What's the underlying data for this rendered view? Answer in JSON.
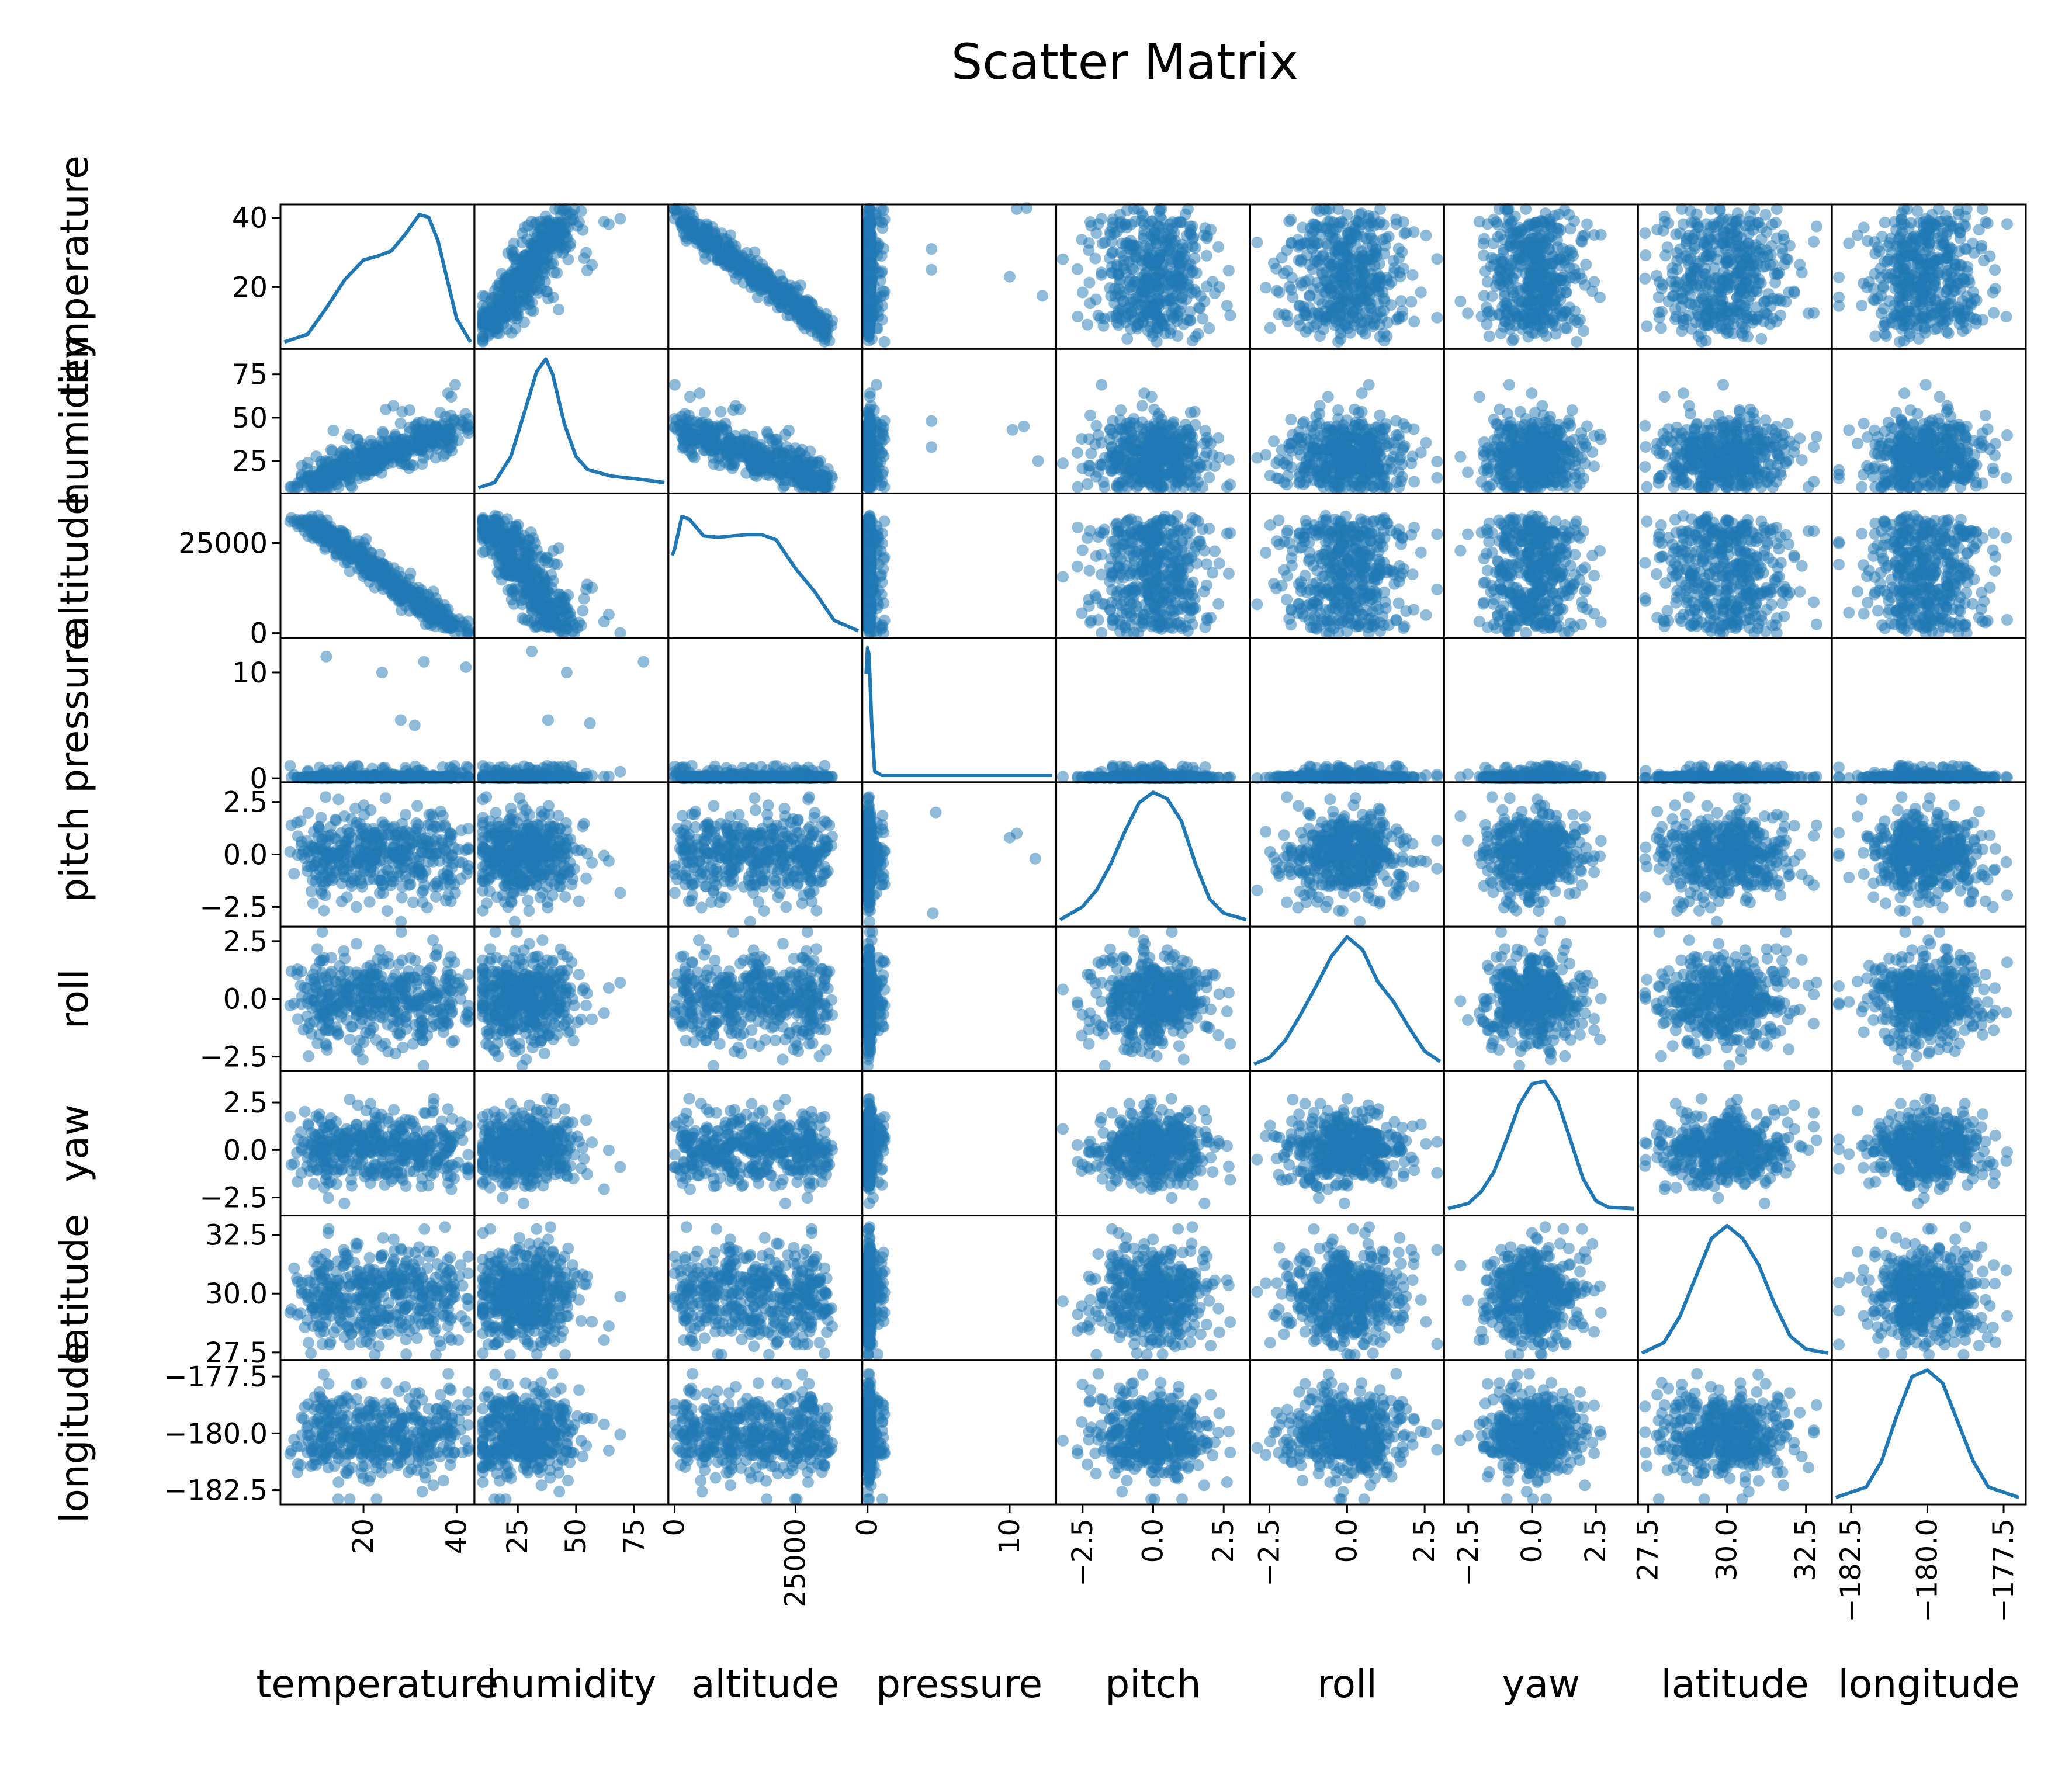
{
  "chart_data": {
    "type": "scatter",
    "title": "Scatter Matrix",
    "diagonal": "kde",
    "color": "#1f77b4",
    "point_alpha": 0.5,
    "variables": [
      {
        "name": "temperature",
        "range": [
          3,
          43
        ],
        "ticks": [
          20,
          40
        ],
        "tick_labels": [
          "20",
          "40"
        ]
      },
      {
        "name": "humidity",
        "range": [
          8,
          88
        ],
        "ticks": [
          25,
          50,
          75
        ],
        "tick_labels": [
          "25",
          "50",
          "75"
        ]
      },
      {
        "name": "altitude",
        "range": [
          -500,
          38000
        ],
        "ticks": [
          0,
          25000
        ],
        "tick_labels": [
          "0",
          "25000"
        ]
      },
      {
        "name": "pressure",
        "range": [
          -0.1,
          13.0
        ],
        "ticks": [
          0,
          10
        ],
        "tick_labels": [
          "0",
          "10"
        ]
      },
      {
        "name": "pitch",
        "range": [
          -3.3,
          3.3
        ],
        "ticks": [
          -2.5,
          0,
          2.5
        ],
        "tick_labels": [
          "−2.5",
          "0.0",
          "2.5"
        ]
      },
      {
        "name": "roll",
        "range": [
          -3.0,
          3.0
        ],
        "ticks": [
          -2.5,
          0,
          2.5
        ],
        "tick_labels": [
          "−2.5",
          "0.0",
          "2.5"
        ]
      },
      {
        "name": "yaw",
        "range": [
          -3.3,
          4.0
        ],
        "ticks": [
          -2.5,
          0,
          2.5
        ],
        "tick_labels": [
          "−2.5",
          "0.0",
          "2.5"
        ]
      },
      {
        "name": "latitude",
        "range": [
          27.3,
          33.2
        ],
        "ticks": [
          27.5,
          30,
          32.5
        ],
        "tick_labels": [
          "27.5",
          "30.0",
          "32.5"
        ]
      },
      {
        "name": "longitude",
        "range": [
          -183.0,
          -176.9
        ],
        "ticks": [
          -182.5,
          -180,
          -177.5
        ],
        "tick_labels": [
          "−182.5",
          "−180.0",
          "−177.5"
        ]
      }
    ],
    "approx_stats": [
      {
        "name": "temperature",
        "mean": 27,
        "sd": 7
      },
      {
        "name": "humidity",
        "mean": 37,
        "sd": 9
      },
      {
        "name": "altitude",
        "mean": 12000,
        "sd": 8000
      },
      {
        "name": "pressure",
        "mean": 0.1,
        "sd": 1.0
      },
      {
        "name": "pitch",
        "mean": 0,
        "sd": 1
      },
      {
        "name": "roll",
        "mean": 0,
        "sd": 1
      },
      {
        "name": "yaw",
        "mean": 0,
        "sd": 1
      },
      {
        "name": "latitude",
        "mean": 30,
        "sd": 1
      },
      {
        "name": "longitude",
        "mean": -180,
        "sd": 1
      }
    ],
    "approx_correlations": [
      {
        "x": "humidity",
        "y": "temperature",
        "r": 0.8
      },
      {
        "x": "altitude",
        "y": "temperature",
        "r": -0.95
      },
      {
        "x": "altitude",
        "y": "humidity",
        "r": -0.75
      }
    ],
    "kde_curves": [
      {
        "name": "temperature",
        "x": [
          3,
          8,
          12,
          16,
          20,
          23,
          26,
          29,
          32,
          34,
          36,
          38,
          40,
          43
        ],
        "density": [
          0.02,
          0.08,
          0.28,
          0.5,
          0.65,
          0.68,
          0.72,
          0.85,
          1.0,
          0.98,
          0.8,
          0.5,
          0.2,
          0.02
        ]
      },
      {
        "name": "humidity",
        "x": [
          8,
          15,
          22,
          28,
          33,
          37,
          40,
          45,
          50,
          55,
          65,
          75,
          88
        ],
        "density": [
          0.01,
          0.05,
          0.25,
          0.6,
          0.9,
          1.0,
          0.88,
          0.5,
          0.25,
          0.15,
          0.1,
          0.08,
          0.05
        ]
      },
      {
        "name": "altitude",
        "x": [
          -500,
          0,
          1500,
          3000,
          6000,
          9000,
          12000,
          15000,
          18000,
          21000,
          25000,
          29000,
          33000,
          38000
        ],
        "density": [
          0.6,
          0.65,
          0.9,
          0.88,
          0.75,
          0.74,
          0.75,
          0.76,
          0.76,
          0.72,
          0.5,
          0.32,
          0.1,
          0.02
        ]
      },
      {
        "name": "pressure",
        "x": [
          -0.1,
          0,
          0.1,
          0.3,
          0.5,
          1.0,
          2.0,
          5.0,
          9.0,
          13.0
        ],
        "density": [
          0.8,
          1.0,
          0.95,
          0.4,
          0.05,
          0.02,
          0.02,
          0.02,
          0.02,
          0.02
        ]
      },
      {
        "name": "pitch",
        "x": [
          -3.3,
          -2.5,
          -2.0,
          -1.5,
          -1.0,
          -0.5,
          0,
          0.5,
          1.0,
          1.5,
          2.0,
          2.5,
          3.3
        ],
        "density": [
          0.02,
          0.12,
          0.25,
          0.45,
          0.7,
          0.92,
          1.0,
          0.95,
          0.78,
          0.45,
          0.18,
          0.07,
          0.02
        ]
      },
      {
        "name": "roll",
        "x": [
          -3.0,
          -2.5,
          -2.0,
          -1.5,
          -1.0,
          -0.5,
          0,
          0.5,
          1.0,
          1.5,
          2.0,
          2.5,
          3.0
        ],
        "density": [
          0.02,
          0.07,
          0.2,
          0.4,
          0.62,
          0.85,
          1.0,
          0.9,
          0.65,
          0.5,
          0.3,
          0.12,
          0.04
        ]
      },
      {
        "name": "yaw",
        "x": [
          -3.3,
          -2.5,
          -2.0,
          -1.5,
          -1.0,
          -0.5,
          0,
          0.5,
          1.0,
          1.5,
          2.0,
          2.5,
          3.0,
          4.0
        ],
        "density": [
          0.02,
          0.06,
          0.15,
          0.3,
          0.55,
          0.82,
          0.98,
          1.0,
          0.85,
          0.55,
          0.25,
          0.08,
          0.03,
          0.02
        ]
      },
      {
        "name": "latitude",
        "x": [
          27.3,
          28.0,
          28.5,
          29.0,
          29.5,
          30.0,
          30.5,
          31.0,
          31.5,
          32.0,
          32.5,
          33.2
        ],
        "density": [
          0.02,
          0.1,
          0.3,
          0.6,
          0.9,
          1.0,
          0.9,
          0.7,
          0.4,
          0.15,
          0.05,
          0.02
        ]
      },
      {
        "name": "longitude",
        "x": [
          -183.0,
          -182.0,
          -181.5,
          -181.0,
          -180.5,
          -180.0,
          -179.5,
          -179.0,
          -178.5,
          -178.0,
          -177.0
        ],
        "density": [
          0.02,
          0.1,
          0.3,
          0.65,
          0.95,
          1.0,
          0.9,
          0.6,
          0.3,
          0.1,
          0.02
        ]
      }
    ],
    "outliers": [
      {
        "x": "pressure",
        "y": "temperature",
        "points": [
          [
            10.5,
            42.5
          ],
          [
            11.2,
            42.8
          ],
          [
            10.0,
            23.0
          ],
          [
            4.5,
            31.0
          ],
          [
            4.5,
            25.0
          ],
          [
            12.3,
            17.5
          ]
        ]
      },
      {
        "x": "pressure",
        "y": "humidity",
        "points": [
          [
            10.2,
            43
          ],
          [
            11.0,
            45
          ],
          [
            4.5,
            48
          ],
          [
            4.5,
            33
          ],
          [
            12.0,
            25
          ]
        ]
      },
      {
        "x": "pressure",
        "y": "pitch",
        "points": [
          [
            4.8,
            2.0
          ],
          [
            10.0,
            0.8
          ],
          [
            10.5,
            1.0
          ],
          [
            11.8,
            -0.2
          ],
          [
            4.6,
            -2.8
          ]
        ]
      },
      {
        "x": "temperature",
        "y": "pressure",
        "points": [
          [
            12,
            11.5
          ],
          [
            24,
            10.0
          ],
          [
            28,
            5.5
          ],
          [
            33,
            11.0
          ],
          [
            31,
            5.0
          ],
          [
            42,
            10.5
          ]
        ]
      },
      {
        "x": "humidity",
        "y": "pressure",
        "points": [
          [
            31,
            12.0
          ],
          [
            46,
            10.0
          ],
          [
            56,
            5.2
          ],
          [
            38,
            5.5
          ],
          [
            79,
            11.0
          ]
        ]
      }
    ],
    "points_per_panel": 440,
    "xlabel": "",
    "ylabel": "",
    "grid": false,
    "legend": "none"
  }
}
